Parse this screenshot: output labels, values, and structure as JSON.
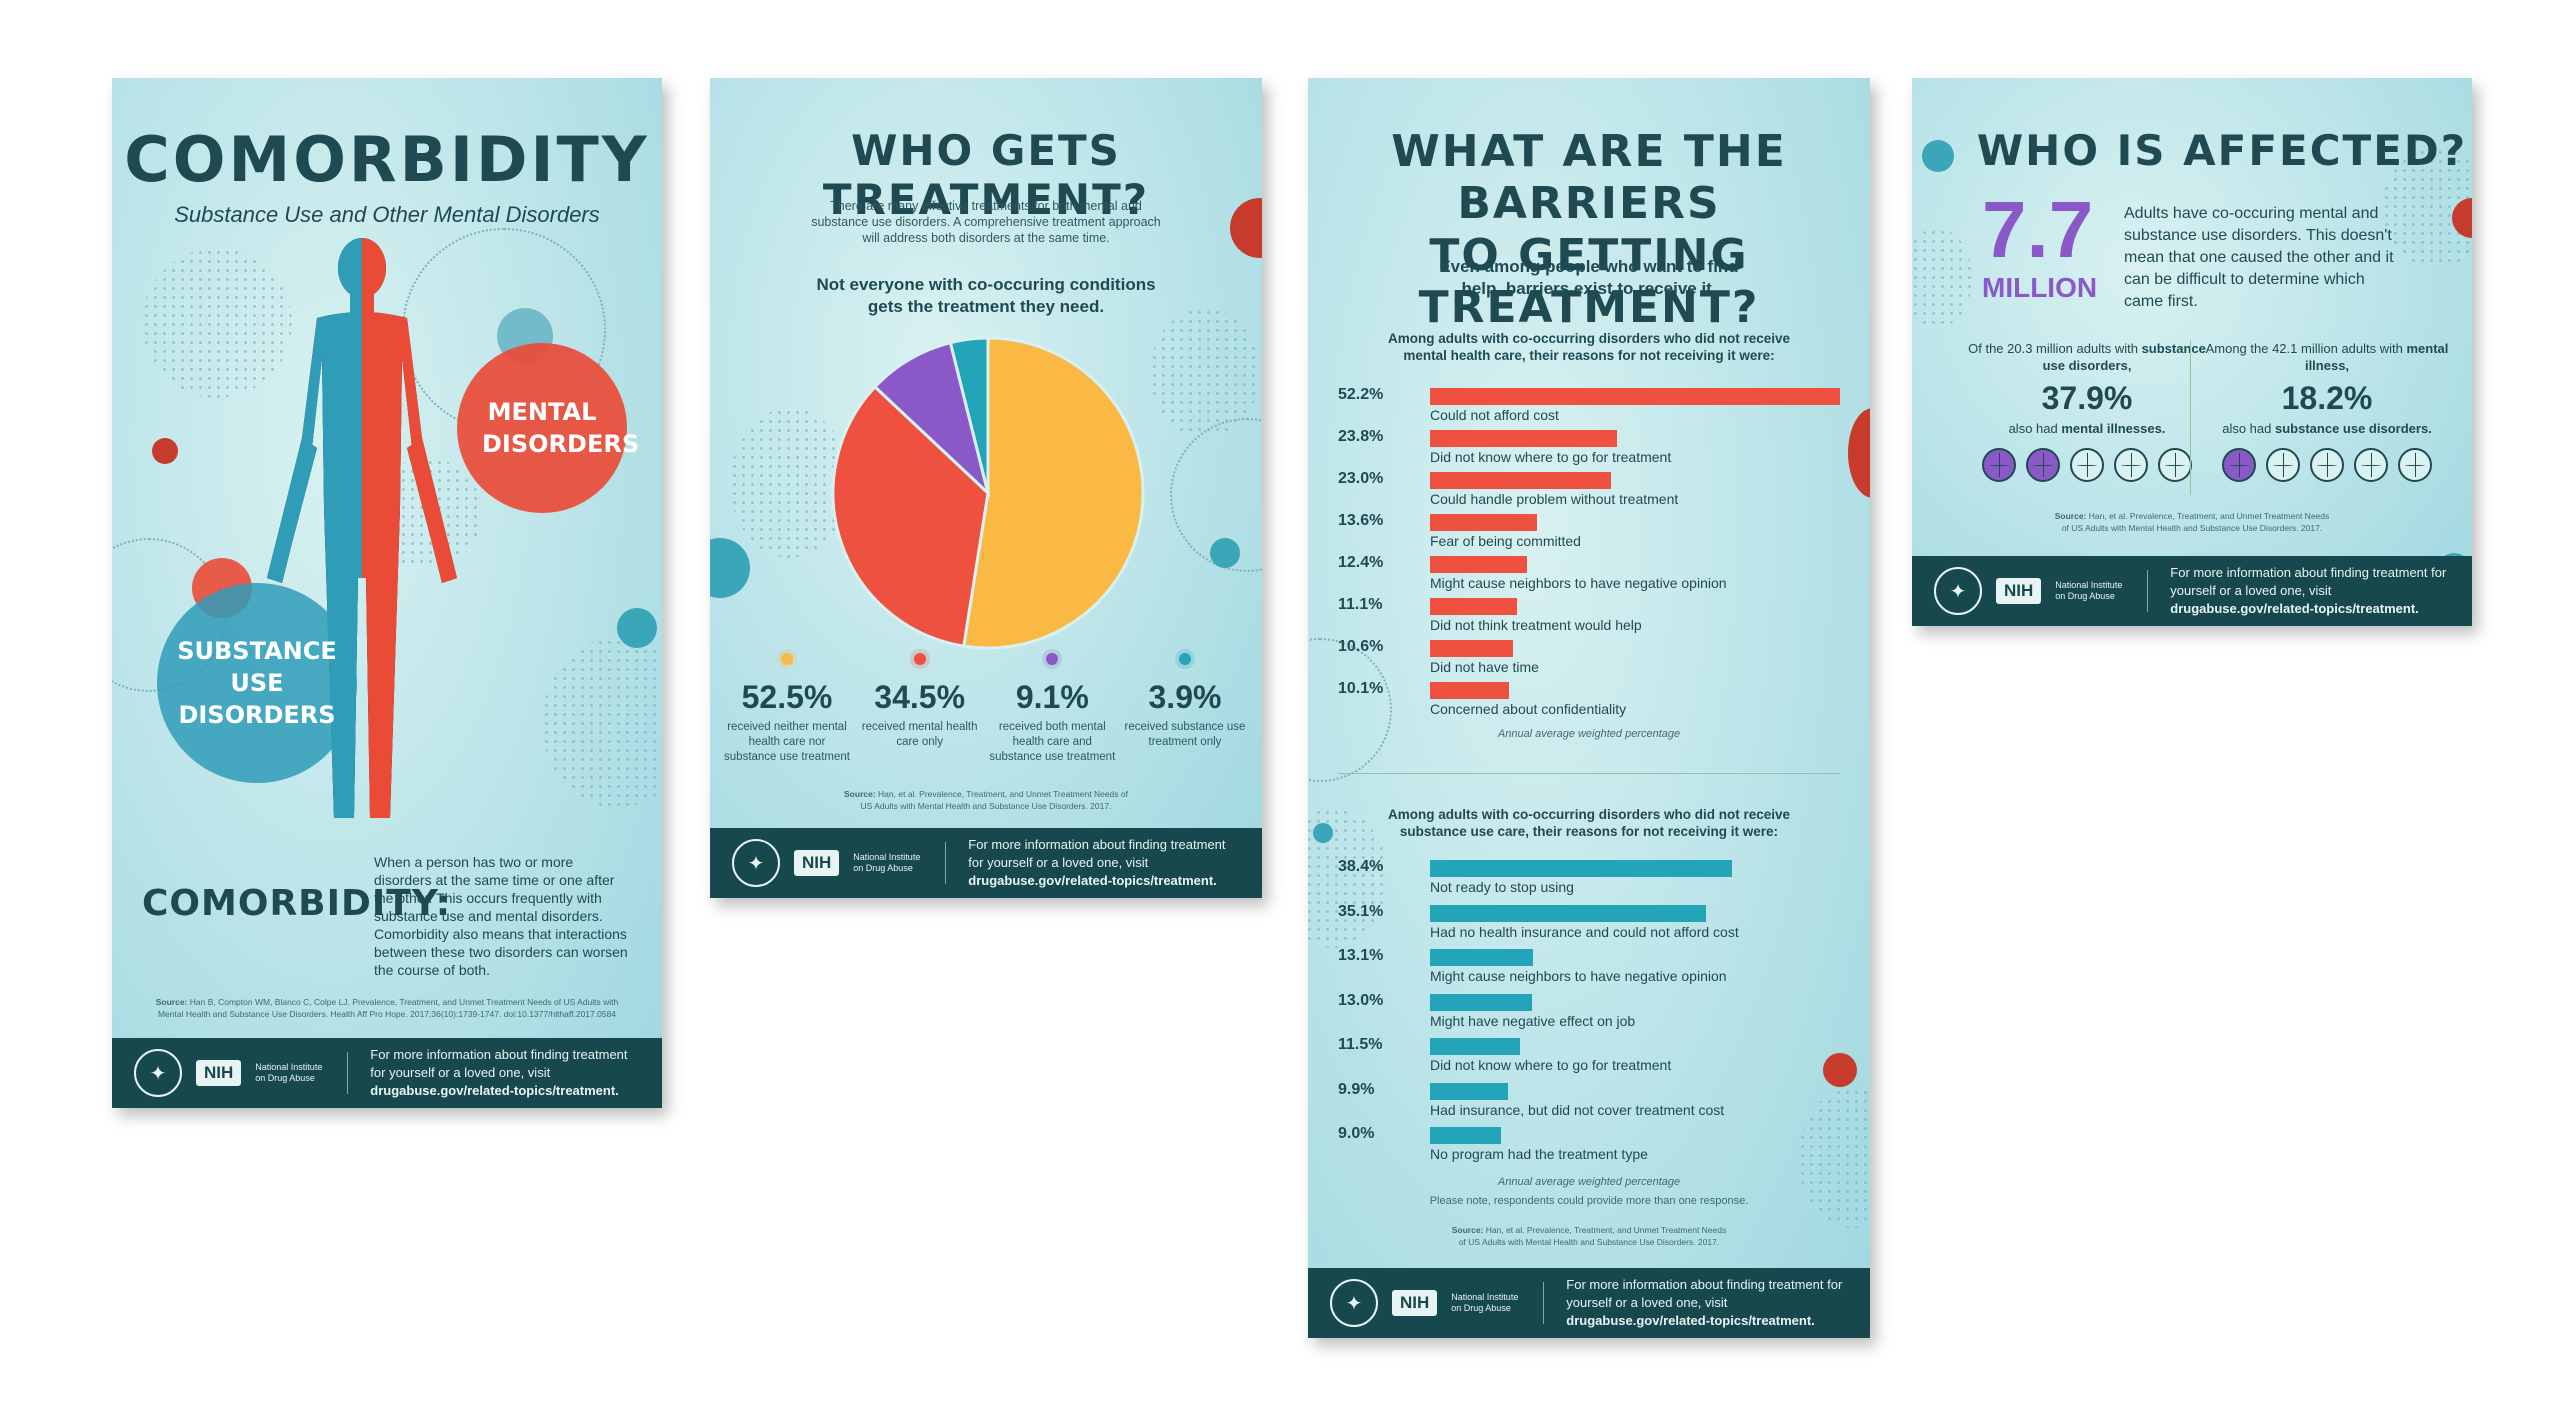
{
  "footer": {
    "info_prefix": "For more information about finding treatment for yourself or a loved one, visit",
    "link": "drugabuse.gov/related-topics/treatment.",
    "nih": "NIH",
    "nida": "National Institute on Drug Abuse"
  },
  "panel1": {
    "title": "COMORBIDITY",
    "subtitle": "Substance Use and Other Mental Disorders",
    "mental": "MENTAL DISORDERS",
    "substance": "SUBSTANCE USE DISORDERS",
    "def_label": "COMORBIDITY:",
    "definition": "When a person has two or more disorders at the same time or one after the other. This occurs frequently with substance use and mental disorders. Comorbidity also means that interactions between these two disorders can worsen the course of both.",
    "source_label": "Source:",
    "source": "Han B, Compton WM, Blanco C, Colpe LJ. Prevalence, Treatment, and Unmet Treatment Needs of US Adults with Mental Health and Substance Use Disorders. Health Aff Pro Hope. 2017;36(10):1739-1747. doi:10.1377/hlthaff.2017.0584"
  },
  "panel2": {
    "title": "WHO GETS TREATMENT?",
    "intro": "There are many effective treatments for both mental and substance use disorders. A comprehensive treatment approach will address both disorders at the same time.",
    "subhead": "Not everyone with co-occuring conditions gets the treatment they need.",
    "source_label": "Source:",
    "source": "Han, et al. Prevalence, Treatment, and Unmet Treatment Needs of US Adults with Mental Health and Substance Use Disorders. 2017.",
    "stats": [
      {
        "pct": "52.5%",
        "label": "received neither mental health care nor substance use treatment",
        "color": "#f9b944"
      },
      {
        "pct": "34.5%",
        "label": "received mental health care only",
        "color": "#ef5140"
      },
      {
        "pct": "9.1%",
        "label": "received both mental health care and substance use treatment",
        "color": "#8b59c7"
      },
      {
        "pct": "3.9%",
        "label": "received substance use treatment only",
        "color": "#23a4b9"
      }
    ]
  },
  "chart_data": [
    {
      "type": "pie",
      "categories": [
        "received neither mental health care nor substance use treatment",
        "received mental health care only",
        "received both mental health care and substance use treatment",
        "received substance use treatment only"
      ],
      "values": [
        52.5,
        34.5,
        9.1,
        3.9
      ],
      "colors": [
        "#f9b944",
        "#ef5140",
        "#8b59c7",
        "#23a4b9"
      ]
    },
    {
      "type": "bar",
      "orientation": "horizontal",
      "categories": [
        "Could not afford cost",
        "Did not know where to go for treatment",
        "Could handle problem without treatment",
        "Fear of being committed",
        "Might cause neighbors to have negative opinion",
        "Did not think treatment would help",
        "Did not have time",
        "Concerned about confidentiality"
      ],
      "values": [
        52.2,
        23.8,
        23.0,
        13.6,
        12.4,
        11.1,
        10.6,
        10.1
      ],
      "labels": [
        "52.2%",
        "23.8%",
        "23.0%",
        "13.6%",
        "12.4%",
        "11.1%",
        "10.6%",
        "10.1%"
      ],
      "color": "#ef5140"
    },
    {
      "type": "bar",
      "orientation": "horizontal",
      "categories": [
        "Not ready to stop using",
        "Had no health insurance and could not afford cost",
        "Might cause neighbors to have negative opinion",
        "Might have negative effect on job",
        "Did not know where to go for treatment",
        "Had insurance, but did not cover treatment cost",
        "No program had the treatment type"
      ],
      "values": [
        38.4,
        35.1,
        13.1,
        13.0,
        11.5,
        9.9,
        9.0
      ],
      "labels": [
        "38.4%",
        "35.1%",
        "13.1%",
        "13.0%",
        "11.5%",
        "9.9%",
        "9.0%"
      ],
      "color": "#23a4b9"
    }
  ],
  "panel3": {
    "title_line1": "WHAT ARE THE BARRIERS",
    "title_line2": "TO GETTING TREATMENT?",
    "subhead": "Even among people who want to find help, barriers exist to receive it.",
    "mh_head": "Among adults with co-occurring disorders who did not receive mental health care, their reasons for not receiving it were:",
    "mh_note": "Annual average weighted percentage",
    "su_head": "Among adults with co-occurring disorders who did not receive substance use care, their reasons for not receiving it were:",
    "su_note": "Annual average weighted percentage",
    "su_note2": "Please note, respondents could provide more than one response.",
    "source_label": "Source:",
    "source": "Han, et al. Prevalence, Treatment, and Unmet Treatment Needs of US Adults with Mental Health and Substance Use Disorders. 2017."
  },
  "panel4": {
    "title": "WHO IS AFFECTED?",
    "big_number": "7.7",
    "big_unit": "MILLION",
    "desc": "Adults have co-occuring mental and substance use disorders. This doesn't mean that one caused the other and it can be difficult to determine which came first.",
    "left_pre": "Of the 20.3 million adults with",
    "left_bold": "substance use disorders,",
    "left_pct": "37.9%",
    "left_post_pre": "also had",
    "left_post_bold": "mental illnesses.",
    "left_brains_on": 2,
    "right_pre": "Among the 42.1 million adults with",
    "right_bold": "mental illness,",
    "right_pct": "18.2%",
    "right_post_pre": "also had",
    "right_post_bold": "substance use disorders.",
    "right_brains_on": 1,
    "source_label": "Source:",
    "source": "Han, et al. Prevalence, Treatment, and Unmet Treatment Needs of US Adults with Mental Health and Substance Use Disorders. 2017."
  }
}
